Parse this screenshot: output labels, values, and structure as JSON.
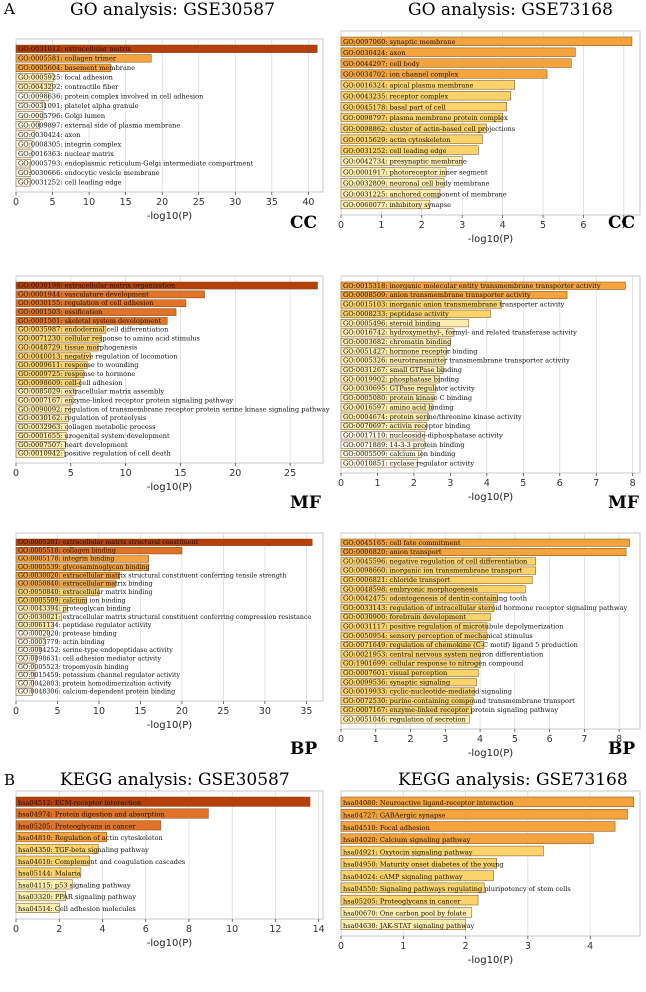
{
  "headings": {
    "letter_a": "A",
    "letter_b": "B",
    "go_left": "GO analysis: GSE30587",
    "go_right": "GO analysis: GSE73168",
    "kegg_left": "KEGG analysis: GSE30587",
    "kegg_right": "KEGG analysis: GSE73168"
  },
  "colors": {
    "dark": "#b5400b",
    "mid": "#e07328",
    "orange": "#f5a33c",
    "light": "#fbd36b",
    "pale": "#fdeeb0",
    "white": "#fffbe8"
  },
  "chart_data": [
    {
      "id": "cc-left",
      "type": "bar",
      "orientation": "horizontal",
      "xlabel": "-log10(P)",
      "category_label": "CC",
      "xlim": [
        0,
        42
      ],
      "ticks": [
        0,
        5,
        10,
        15,
        20,
        25,
        30,
        35,
        40
      ],
      "categories": [
        "GO:0031012: extracellular matrix",
        "GO:0005581: collagen trimer",
        "GO:0005604: basement membrane",
        "GO:0005925: focal adhesion",
        "GO:0043292: contractile fiber",
        "GO:0098636: protein complex involved in cell adhesion",
        "GO:0031091: platelet alpha granule",
        "GO:0005796: Golgi lumen",
        "GO:0009897: external side of plasma membrane",
        "GO:0030424: axon",
        "GO:0008305: integrin complex",
        "GO:0016363: nuclear matrix",
        "GO:0005793: endoplasmic reticulum-Golgi intermediate compartment",
        "GO:0030666: endocytic vesicle membrane",
        "GO:0031252: cell leading edge"
      ],
      "values": [
        41.2,
        18.5,
        13,
        5.2,
        5,
        4.5,
        3.9,
        3.7,
        3.2,
        2.5,
        2.2,
        2.2,
        2,
        2,
        2
      ]
    },
    {
      "id": "cc-right",
      "type": "bar",
      "orientation": "horizontal",
      "xlabel": "-log10(P)",
      "category_label": "CC",
      "xlim": [
        0,
        7.4
      ],
      "ticks": [
        0,
        1,
        2,
        3,
        4,
        5,
        6,
        7
      ],
      "categories": [
        "GO:0097060: synaptic membrane",
        "GO:0030424: axon",
        "GO:0044297: cell body",
        "GO:0034702: ion channel complex",
        "GO:0016324: apical plasma membrane",
        "GO:0043235: receptor complex",
        "GO:0045178: basal part of cell",
        "GO:0098797: plasma membrane protein complex",
        "GO:0098862: cluster of actin-based cell projections",
        "GO:0015629: actin cytoskeleton",
        "GO:0031252: cell leading edge",
        "GO:0042734: presynaptic membrane",
        "GO:0001917: photoreceptor inner segment",
        "GO:0032809: neuronal cell body membrane",
        "GO:0031225: anchored component of membrane",
        "GO:0060077: inhibitory synapse"
      ],
      "values": [
        7.2,
        5.8,
        5.7,
        5.1,
        4.3,
        4.2,
        4.1,
        4.0,
        3.6,
        3.5,
        3.4,
        3.0,
        2.6,
        2.55,
        2.45,
        2.2
      ]
    },
    {
      "id": "mf-left",
      "type": "bar",
      "orientation": "horizontal",
      "xlabel": "-log10(P)",
      "category_label": "MF",
      "xlim": [
        0,
        28
      ],
      "ticks": [
        0,
        5,
        10,
        15,
        20,
        25
      ],
      "categories": [
        "GO:0030198: extracellular matrix organization",
        "GO:0001944: vasculature development",
        "GO:0030155: regulation of cell adhesion",
        "GO:0001503: ossification",
        "GO:0001501: skeletal system development",
        "GO:0035987: endodermal cell differentiation",
        "GO:0071230: cellular response to amino acid stimulus",
        "GO:0048729: tissue morphogenesis",
        "GO:0040013: negative regulation of locomotion",
        "GO:0009611: response to wounding",
        "GO:0009725: response to hormone",
        "GO:0098609: cell-cell adhesion",
        "GO:0085029: extracellular matrix assembly",
        "GO:0007167: enzyme-linked receptor protein signaling pathway",
        "GO:0090092: regulation of transmembrane receptor protein serine kinase signaling pathway",
        "GO:0030162: regulation of proteolysis",
        "GO:0032963: collagen metabolic process",
        "GO:0001655: urogenital system development",
        "GO:0007507: heart development",
        "GO:0010942: positive regulation of cell death"
      ],
      "values": [
        27.5,
        17.2,
        15.5,
        14.6,
        13.8,
        8.2,
        7.8,
        7.5,
        6.8,
        6.5,
        6.2,
        5.9,
        5.4,
        5.2,
        5.0,
        4.8,
        4.7,
        4.6,
        4.5,
        4.4
      ]
    },
    {
      "id": "mf-right",
      "type": "bar",
      "orientation": "horizontal",
      "xlabel": "-log10(P)",
      "category_label": "MF",
      "xlim": [
        0,
        8.2
      ],
      "ticks": [
        0,
        1,
        2,
        3,
        4,
        5,
        6,
        7,
        8
      ],
      "categories": [
        "GO:0015318: inorganic molecular entity transmembrane transporter activity",
        "GO:0008509: anion transmembrane transporter activity",
        "GO:0015103: inorganic anion transmembrane transporter activity",
        "GO:0008233: peptidase activity",
        "GO:0005496: steroid binding",
        "GO:0016742: hydroxymethyl-, formyl- and related transferase activity",
        "GO:0003682: chromatin binding",
        "GO:0051427: hormone receptor binding",
        "GO:0005326: neurotransmitter transmembrane transporter activity",
        "GO:0031267: small GTPase binding",
        "GO:0019902: phosphatase binding",
        "GO:0030695: GTPase regulator activity",
        "GO:0005080: protein kinase C binding",
        "GO:0016597: amino acid binding",
        "GO:0004674: protein serine/threonine kinase activity",
        "GO:0070697: activin receptor binding",
        "GO:0017110: nucleoside-diphosphatase activity",
        "GO:0071889: 14-3-3 protein binding",
        "GO:0005509: calcium ion binding",
        "GO:0010851: cyclase regulator activity"
      ],
      "values": [
        7.8,
        6.2,
        4.4,
        4.1,
        3.5,
        3.1,
        3.0,
        2.9,
        2.85,
        2.8,
        2.7,
        2.6,
        2.55,
        2.5,
        2.4,
        2.35,
        2.3,
        2.3,
        2.2,
        2.1
      ]
    },
    {
      "id": "bp-left",
      "type": "bar",
      "orientation": "horizontal",
      "xlabel": "-log10(P)",
      "category_label": "BP",
      "xlim": [
        0,
        37
      ],
      "ticks": [
        0,
        5,
        10,
        15,
        20,
        25,
        30,
        35
      ],
      "categories": [
        "GO:0005201: extracellular matrix structural constituent",
        "GO:0005518: collagen binding",
        "GO:0005178: integrin binding",
        "GO:0005539: glycosaminoglycan binding",
        "GO:0030020: extracellular matrix structural constituent conferring tensile strength",
        "GO:0050840: extracellular matrix binding",
        "GO:0050840: extracellular matrix binding",
        "GO:0005509: calcium ion binding",
        "GO:0043394: proteoglycan binding",
        "GO:0030021: extracellular matrix structural constituent conferring compression resistance",
        "GO:0061134: peptidase regulator activity",
        "GO:0002020: protease binding",
        "GO:0003779: actin binding",
        "GO:0004252: serine-type endopeptidase activity",
        "GO:0098631: cell adhesion mediator activity",
        "GO:0005523: tropomyosin binding",
        "GO:0015459: potassium channel regulator activity",
        "GO:0042803: protein homodimerization activity",
        "GO:0048306: calcium-dependent protein binding"
      ],
      "values": [
        35.7,
        20,
        16,
        16,
        12.5,
        12,
        10,
        8.5,
        6.2,
        5.5,
        4.5,
        4.0,
        3.5,
        3.0,
        2.5,
        2.3,
        2.2,
        2.1,
        2.0
      ]
    },
    {
      "id": "bp-right",
      "type": "bar",
      "orientation": "horizontal",
      "xlabel": "-log10(P)",
      "category_label": "BP",
      "xlim": [
        0,
        8.6
      ],
      "ticks": [
        0,
        1,
        2,
        3,
        4,
        5,
        6,
        7,
        8
      ],
      "categories": [
        "GO:0045165: cell fate commitment",
        "GO:0006820: anion transport",
        "GO:0045596: negative regulation of cell differentiation",
        "GO:0098660: inorganic ion transmembrane transport",
        "GO:0006821: chloride transport",
        "GO:0048598: embryonic morphogenesis",
        "GO:0042475: odontogenesis of dentin-containing tooth",
        "GO:0033143: regulation of intracellular steroid hormone receptor signaling pathway",
        "GO:0030900: forebrain development",
        "GO:0031117: positive regulation of microtubule depolymerization",
        "GO:0050954: sensory perception of mechanical stimulus",
        "GO:0071649: regulation of chemokine (C-C motif) ligand 5 production",
        "GO:0021953: central nervous system neuron differentiation",
        "GO:1901699: cellular response to nitrogen compound",
        "GO:0007601: visual perception",
        "GO:0099536: synaptic signaling",
        "GO:0019933: cyclic-nucleotide-mediated signaling",
        "GO:0072530: purine-containing compound transmembrane transport",
        "GO:0007167: enzyme-linked receptor protein signaling pathway",
        "GO:0051046: regulation of secretion"
      ],
      "values": [
        8.3,
        8.2,
        5.6,
        5.6,
        5.5,
        5.3,
        4.5,
        4.4,
        4.3,
        4.2,
        4.2,
        4.1,
        4.0,
        4.0,
        3.95,
        3.9,
        3.85,
        3.8,
        3.75,
        3.7
      ]
    },
    {
      "id": "kegg-left",
      "type": "bar",
      "orientation": "horizontal",
      "xlabel": "-log10(P)",
      "category_label": "",
      "xlim": [
        0,
        14.2
      ],
      "ticks": [
        0,
        2,
        4,
        6,
        8,
        10,
        12,
        14
      ],
      "categories": [
        "hsa04512: ECM-receptor interaction",
        "hsa04974: Protein digestion and absorption",
        "hsa05205: Proteoglycans in cancer",
        "hsa04810: Regulation of actin cytoskeleton",
        "hsa04350: TGF-beta signaling pathway",
        "hsa04610: Complement and coagulation cascades",
        "hsa05144: Malaria",
        "hsa04115: p53 signaling pathway",
        "hsa03320: PPAR signaling pathway",
        "hsa04514: Cell adhesion molecules"
      ],
      "values": [
        13.6,
        8.9,
        6.7,
        4.2,
        3.8,
        3.4,
        3.0,
        2.6,
        2.3,
        2.0
      ]
    },
    {
      "id": "kegg-right",
      "type": "bar",
      "orientation": "horizontal",
      "xlabel": "-log10(P)",
      "category_label": "",
      "xlim": [
        0,
        4.8
      ],
      "ticks": [
        0,
        1,
        2,
        3,
        4
      ],
      "categories": [
        "hsa04080: Neuroactive ligand-receptor interaction",
        "hsa04727: GABAergic synapse",
        "hsa04510: Focal adhesion",
        "hsa04020: Calcium signaling pathway",
        "hsa04921: Oxytocin signaling pathway",
        "hsa04950: Maturity onset diabetes of the young",
        "hsa04024: cAMP signaling pathway",
        "hsa04550: Signaling pathways regulating pluripotency of stem cells",
        "hsa05205: Proteoglycans in cancer",
        "hsa00670: One carbon pool by folate",
        "hsa04630: JAK-STAT signaling pathway"
      ],
      "values": [
        4.7,
        4.6,
        4.4,
        4.05,
        3.25,
        2.5,
        2.45,
        2.3,
        2.2,
        2.1,
        2.0
      ]
    }
  ]
}
